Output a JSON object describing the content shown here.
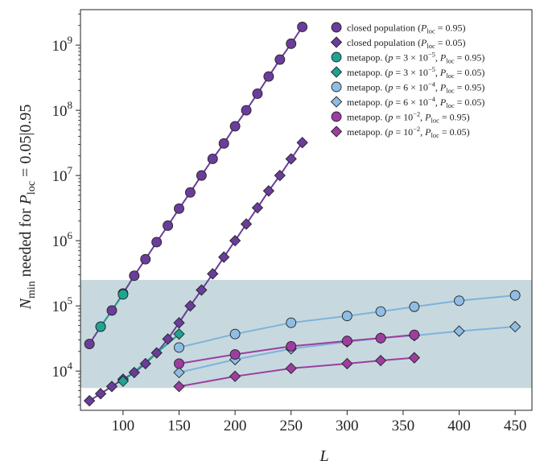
{
  "colors": {
    "closed": "#6a3d9a",
    "teal": "#1fa393",
    "lightblue": "#8fbde3",
    "lightblue_line": "#7fb2dd",
    "magenta": "#9c3ea0",
    "band": "#c7d9de",
    "marker_stroke": "#222222"
  },
  "chart_data": {
    "type": "line",
    "xlabel": "L",
    "ylabel": "N_min needed for P_loc = 0.05|0.95",
    "xlim": [
      62,
      465
    ],
    "ylim": [
      2500,
      3500000000
    ],
    "y_scale": "log",
    "x_ticks": [
      100,
      150,
      200,
      250,
      300,
      350,
      400,
      450
    ],
    "y_ticks": [
      {
        "value": 10000,
        "base": "10",
        "exp": "4"
      },
      {
        "value": 100000,
        "base": "10",
        "exp": "5"
      },
      {
        "value": 1000000,
        "base": "10",
        "exp": "6"
      },
      {
        "value": 10000000,
        "base": "10",
        "exp": "7"
      },
      {
        "value": 100000000,
        "base": "10",
        "exp": "8"
      },
      {
        "value": 1000000000,
        "base": "10",
        "exp": "9"
      }
    ],
    "shaded_band": {
      "y_low": 5500,
      "y_high": 250000
    },
    "grid": false,
    "legend_position": "top-right",
    "series": [
      {
        "name": "closed population (P_loc = 0.95)",
        "legend": {
          "pre": "closed population (",
          "var": "P",
          "sub": "loc",
          "post": " = 0.95)"
        },
        "marker": "circle",
        "color_key": "closed",
        "x": [
          70,
          80,
          90,
          100,
          110,
          120,
          130,
          140,
          150,
          160,
          170,
          180,
          190,
          200,
          210,
          220,
          230,
          240,
          250,
          260
        ],
        "y": [
          26000,
          48000,
          85000,
          155000,
          290000,
          520000,
          950000,
          1700000,
          3100000,
          5500000,
          10000000,
          18000000,
          31000000,
          57000000,
          100000000,
          180000000,
          330000000,
          600000000,
          1050000000,
          1900000000
        ]
      },
      {
        "name": "closed population (P_loc = 0.05)",
        "legend": {
          "pre": "closed population (",
          "var": "P",
          "sub": "loc",
          "post": " = 0.05)"
        },
        "marker": "diamond",
        "color_key": "closed",
        "x": [
          70,
          80,
          90,
          100,
          110,
          120,
          130,
          140,
          150,
          160,
          170,
          180,
          190,
          200,
          210,
          220,
          230,
          240,
          250,
          260
        ],
        "y": [
          3500,
          4500,
          5800,
          7500,
          9500,
          13000,
          19000,
          31000,
          55000,
          100000,
          175000,
          310000,
          560000,
          1000000,
          1800000,
          3200000,
          5800000,
          10000000,
          18000000,
          32000000
        ]
      },
      {
        "name": "metapop. (p = 3×10^-5, P_loc = 0.95)",
        "legend": {
          "pre": "metapop. (",
          "p": "p",
          "mid": " = 3 × 10",
          "sup": "−5",
          "var": "P",
          "sub": "loc",
          "post": " = 0.95)"
        },
        "marker": "circle",
        "color_key": "teal",
        "x": [
          80,
          100
        ],
        "y": [
          48000,
          150000
        ]
      },
      {
        "name": "metapop. (p = 3×10^-5, P_loc = 0.05)",
        "legend": {
          "pre": "metapop. (",
          "p": "p",
          "mid": " = 3 × 10",
          "sup": "−5",
          "var": "P",
          "sub": "loc",
          "post": " = 0.05)"
        },
        "marker": "diamond",
        "color_key": "teal",
        "x": [
          100,
          150
        ],
        "y": [
          7000,
          37000
        ]
      },
      {
        "name": "metapop. (p = 6×10^-4, P_loc = 0.95)",
        "legend": {
          "pre": "metapop. (",
          "p": "p",
          "mid": " = 6 × 10",
          "sup": "−4",
          "var": "P",
          "sub": "loc",
          "post": " = 0.95)"
        },
        "marker": "circle",
        "color_key": "lightblue",
        "x": [
          150,
          200,
          250,
          300,
          330,
          360,
          400,
          450
        ],
        "y": [
          23000,
          37000,
          55000,
          70000,
          82000,
          97000,
          120000,
          145000
        ]
      },
      {
        "name": "metapop. (p = 6×10^-4, P_loc = 0.05)",
        "legend": {
          "pre": "metapop. (",
          "p": "p",
          "mid": " = 6 × 10",
          "sup": "−4",
          "var": "P",
          "sub": "loc",
          "post": " = 0.05)"
        },
        "marker": "diamond",
        "color_key": "lightblue",
        "x": [
          150,
          200,
          250,
          300,
          330,
          360,
          400,
          450
        ],
        "y": [
          9500,
          15000,
          22000,
          28000,
          32000,
          35000,
          41000,
          48000
        ]
      },
      {
        "name": "metapop. (p = 10^-2, P_loc = 0.95)",
        "legend": {
          "pre": "metapop. (",
          "p": "p",
          "mid": " = 10",
          "sup": "−2",
          "var": "P",
          "sub": "loc",
          "post": " = 0.95)"
        },
        "marker": "circle",
        "color_key": "magenta",
        "x": [
          150,
          200,
          250,
          300,
          330,
          360
        ],
        "y": [
          13000,
          18000,
          24000,
          29000,
          32000,
          36000
        ]
      },
      {
        "name": "metapop. (p = 10^-2, P_loc = 0.05)",
        "legend": {
          "pre": "metapop. (",
          "p": "p",
          "mid": " = 10",
          "sup": "−2",
          "var": "P",
          "sub": "loc",
          "post": " = 0.05)"
        },
        "marker": "diamond",
        "color_key": "magenta",
        "x": [
          150,
          200,
          250,
          300,
          330,
          360
        ],
        "y": [
          5800,
          8300,
          11000,
          13000,
          14500,
          16000
        ]
      }
    ]
  }
}
